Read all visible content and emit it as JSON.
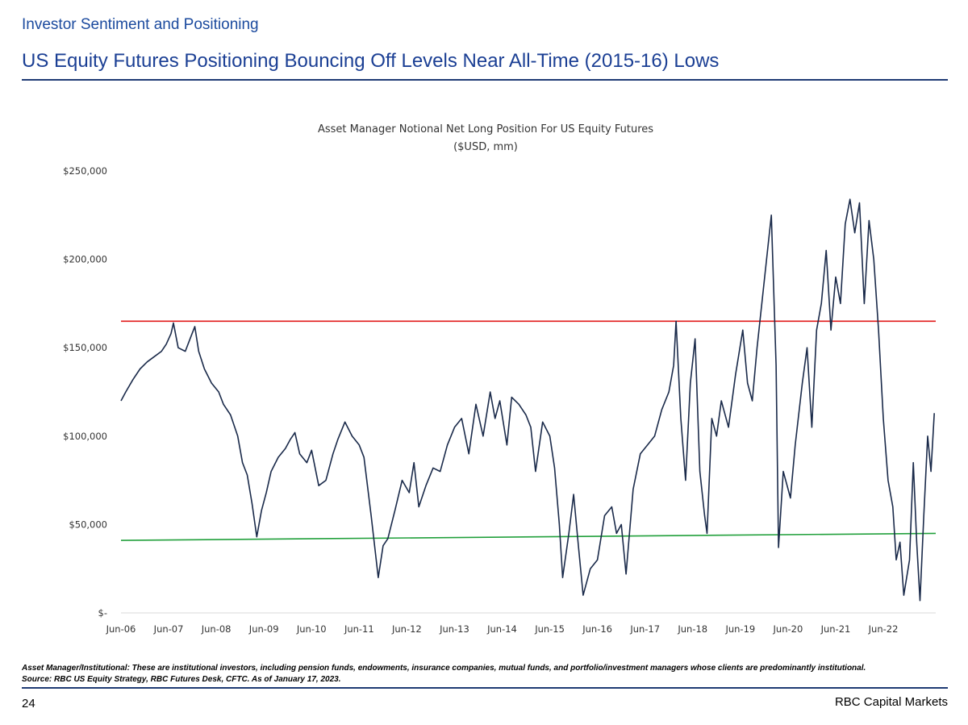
{
  "header": {
    "section": "Investor Sentiment and Positioning",
    "title": "US Equity Futures Positioning Bouncing Off Levels Near All-Time (2015-16) Lows"
  },
  "chart_data": {
    "type": "line",
    "title": "Asset Manager Notional Net Long Position For US Equity Futures",
    "subtitle": "($USD, mm)",
    "xlabel": "",
    "ylabel": "",
    "ylim": [
      0,
      250000
    ],
    "y_ticks": [
      {
        "value": 0,
        "label": "$-"
      },
      {
        "value": 50000,
        "label": "$50,000"
      },
      {
        "value": 100000,
        "label": "$100,000"
      },
      {
        "value": 150000,
        "label": "$150,000"
      },
      {
        "value": 200000,
        "label": "$200,000"
      },
      {
        "value": 250000,
        "label": "$250,000"
      }
    ],
    "x_ticks": [
      "Jun-06",
      "Jun-07",
      "Jun-08",
      "Jun-09",
      "Jun-10",
      "Jun-11",
      "Jun-12",
      "Jun-13",
      "Jun-14",
      "Jun-15",
      "Jun-16",
      "Jun-17",
      "Jun-18",
      "Jun-19",
      "Jun-20",
      "Jun-21",
      "Jun-22"
    ],
    "xlim": [
      2006.45,
      2023.55
    ],
    "grid": false,
    "series": [
      {
        "color": "#1a2a4a",
        "points": [
          [
            2006.45,
            120000
          ],
          [
            2006.55,
            125000
          ],
          [
            2006.7,
            132000
          ],
          [
            2006.85,
            138000
          ],
          [
            2007.0,
            142000
          ],
          [
            2007.15,
            145000
          ],
          [
            2007.3,
            148000
          ],
          [
            2007.4,
            152000
          ],
          [
            2007.5,
            158000
          ],
          [
            2007.55,
            164000
          ],
          [
            2007.65,
            150000
          ],
          [
            2007.8,
            148000
          ],
          [
            2007.9,
            155000
          ],
          [
            2008.0,
            162000
          ],
          [
            2008.08,
            148000
          ],
          [
            2008.2,
            138000
          ],
          [
            2008.35,
            130000
          ],
          [
            2008.5,
            125000
          ],
          [
            2008.6,
            118000
          ],
          [
            2008.75,
            112000
          ],
          [
            2008.9,
            100000
          ],
          [
            2009.0,
            85000
          ],
          [
            2009.1,
            78000
          ],
          [
            2009.2,
            62000
          ],
          [
            2009.3,
            43000
          ],
          [
            2009.4,
            58000
          ],
          [
            2009.5,
            68000
          ],
          [
            2009.6,
            80000
          ],
          [
            2009.75,
            88000
          ],
          [
            2009.9,
            93000
          ],
          [
            2010.0,
            98000
          ],
          [
            2010.1,
            102000
          ],
          [
            2010.2,
            90000
          ],
          [
            2010.35,
            85000
          ],
          [
            2010.45,
            92000
          ],
          [
            2010.6,
            72000
          ],
          [
            2010.75,
            75000
          ],
          [
            2010.9,
            90000
          ],
          [
            2011.0,
            98000
          ],
          [
            2011.15,
            108000
          ],
          [
            2011.3,
            100000
          ],
          [
            2011.45,
            95000
          ],
          [
            2011.55,
            88000
          ],
          [
            2011.7,
            55000
          ],
          [
            2011.85,
            20000
          ],
          [
            2011.95,
            38000
          ],
          [
            2012.05,
            42000
          ],
          [
            2012.2,
            58000
          ],
          [
            2012.35,
            75000
          ],
          [
            2012.5,
            68000
          ],
          [
            2012.6,
            85000
          ],
          [
            2012.7,
            60000
          ],
          [
            2012.85,
            72000
          ],
          [
            2013.0,
            82000
          ],
          [
            2013.15,
            80000
          ],
          [
            2013.3,
            95000
          ],
          [
            2013.45,
            105000
          ],
          [
            2013.6,
            110000
          ],
          [
            2013.75,
            90000
          ],
          [
            2013.9,
            118000
          ],
          [
            2014.05,
            100000
          ],
          [
            2014.2,
            125000
          ],
          [
            2014.3,
            110000
          ],
          [
            2014.4,
            120000
          ],
          [
            2014.55,
            95000
          ],
          [
            2014.65,
            122000
          ],
          [
            2014.8,
            118000
          ],
          [
            2014.95,
            112000
          ],
          [
            2015.05,
            105000
          ],
          [
            2015.15,
            80000
          ],
          [
            2015.3,
            108000
          ],
          [
            2015.45,
            100000
          ],
          [
            2015.55,
            82000
          ],
          [
            2015.65,
            50000
          ],
          [
            2015.72,
            20000
          ],
          [
            2015.85,
            45000
          ],
          [
            2015.95,
            67000
          ],
          [
            2016.05,
            38000
          ],
          [
            2016.15,
            10000
          ],
          [
            2016.3,
            25000
          ],
          [
            2016.45,
            30000
          ],
          [
            2016.6,
            55000
          ],
          [
            2016.75,
            60000
          ],
          [
            2016.85,
            45000
          ],
          [
            2016.95,
            50000
          ],
          [
            2017.05,
            22000
          ],
          [
            2017.2,
            70000
          ],
          [
            2017.35,
            90000
          ],
          [
            2017.5,
            95000
          ],
          [
            2017.65,
            100000
          ],
          [
            2017.8,
            115000
          ],
          [
            2017.95,
            125000
          ],
          [
            2018.05,
            140000
          ],
          [
            2018.1,
            165000
          ],
          [
            2018.2,
            110000
          ],
          [
            2018.3,
            75000
          ],
          [
            2018.4,
            130000
          ],
          [
            2018.5,
            155000
          ],
          [
            2018.6,
            80000
          ],
          [
            2018.7,
            55000
          ],
          [
            2018.75,
            45000
          ],
          [
            2018.85,
            110000
          ],
          [
            2018.95,
            100000
          ],
          [
            2019.05,
            120000
          ],
          [
            2019.2,
            105000
          ],
          [
            2019.35,
            135000
          ],
          [
            2019.5,
            160000
          ],
          [
            2019.6,
            130000
          ],
          [
            2019.7,
            120000
          ],
          [
            2019.8,
            150000
          ],
          [
            2019.9,
            175000
          ],
          [
            2020.0,
            200000
          ],
          [
            2020.1,
            225000
          ],
          [
            2020.2,
            140000
          ],
          [
            2020.25,
            37000
          ],
          [
            2020.35,
            80000
          ],
          [
            2020.5,
            65000
          ],
          [
            2020.6,
            95000
          ],
          [
            2020.75,
            130000
          ],
          [
            2020.85,
            150000
          ],
          [
            2020.95,
            105000
          ],
          [
            2021.05,
            160000
          ],
          [
            2021.15,
            175000
          ],
          [
            2021.25,
            205000
          ],
          [
            2021.35,
            160000
          ],
          [
            2021.45,
            190000
          ],
          [
            2021.55,
            175000
          ],
          [
            2021.65,
            220000
          ],
          [
            2021.75,
            234000
          ],
          [
            2021.85,
            215000
          ],
          [
            2021.95,
            232000
          ],
          [
            2022.05,
            175000
          ],
          [
            2022.15,
            222000
          ],
          [
            2022.25,
            200000
          ],
          [
            2022.35,
            160000
          ],
          [
            2022.45,
            110000
          ],
          [
            2022.55,
            75000
          ],
          [
            2022.65,
            60000
          ],
          [
            2022.72,
            30000
          ],
          [
            2022.8,
            40000
          ],
          [
            2022.88,
            10000
          ],
          [
            2023.0,
            30000
          ],
          [
            2023.08,
            85000
          ],
          [
            2023.15,
            40000
          ],
          [
            2023.22,
            7000
          ],
          [
            2023.3,
            55000
          ],
          [
            2023.38,
            100000
          ],
          [
            2023.45,
            80000
          ],
          [
            2023.52,
            113000
          ]
        ]
      }
    ],
    "reference_lines": [
      {
        "color": "#e11a1a",
        "points": [
          [
            2006.45,
            165000
          ],
          [
            2023.55,
            165000
          ]
        ]
      },
      {
        "color": "#22a03c",
        "points": [
          [
            2006.45,
            41000
          ],
          [
            2023.55,
            45000
          ]
        ]
      }
    ]
  },
  "footnotes": {
    "line1": "Asset Manager/Institutional: These are institutional investors, including pension funds, endowments, insurance companies, mutual funds, and portfolio/investment managers whose clients are predominantly institutional.",
    "line2": "Source: RBC US Equity Strategy, RBC Futures Desk, CFTC. As of January 17, 2023."
  },
  "footer": {
    "page": "24",
    "brand": "RBC Capital Markets"
  }
}
